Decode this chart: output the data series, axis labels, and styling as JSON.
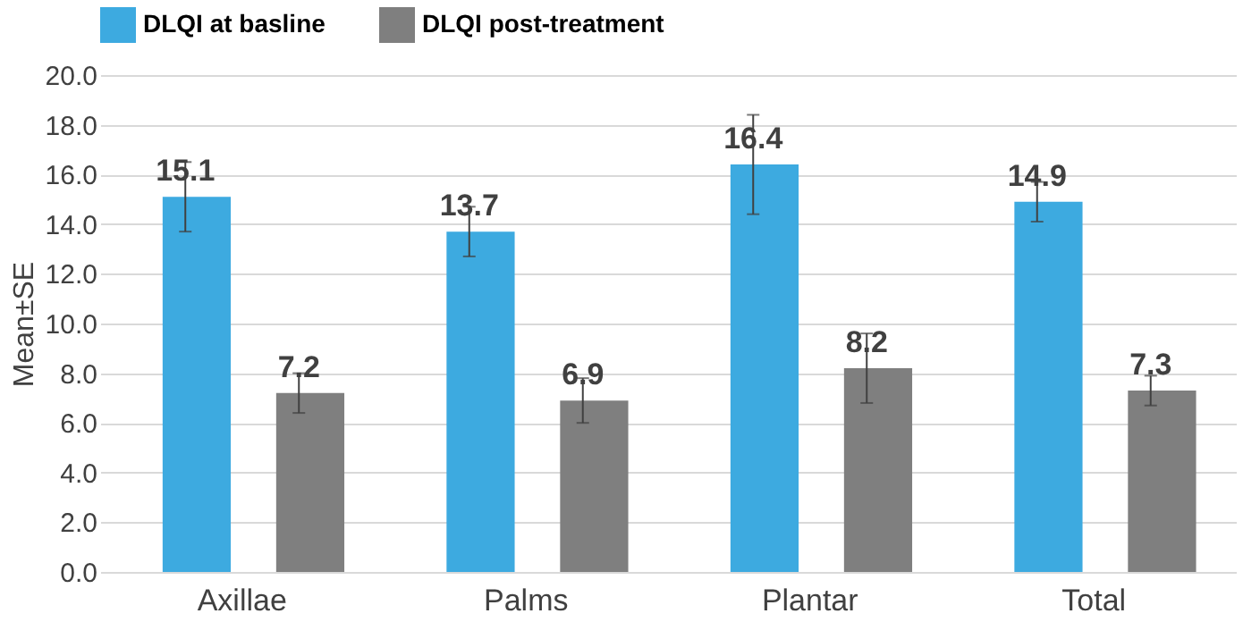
{
  "chart_data": {
    "type": "bar",
    "ylabel": "Mean±SE",
    "categories": [
      "Axillae",
      "Palms",
      "Plantar",
      "Total"
    ],
    "series": [
      {
        "name": "DLQI at basline",
        "color": "#3daae0",
        "values": [
          15.1,
          13.7,
          16.4,
          14.9
        ],
        "errors": [
          1.4,
          1.0,
          2.0,
          0.8
        ]
      },
      {
        "name": "DLQI post-treatment",
        "color": "#7f7f7f",
        "values": [
          7.2,
          6.9,
          8.2,
          7.3
        ],
        "errors": [
          0.8,
          0.9,
          1.4,
          0.6
        ]
      }
    ],
    "ylim": [
      0,
      20
    ],
    "yticks": [
      {
        "value": 0,
        "label": "0.0"
      },
      {
        "value": 2,
        "label": "2.0"
      },
      {
        "value": 4,
        "label": "4.0"
      },
      {
        "value": 6,
        "label": "6.0"
      },
      {
        "value": 8,
        "label": "8.0"
      },
      {
        "value": 10,
        "label": "10.0"
      },
      {
        "value": 12,
        "label": "12.0"
      },
      {
        "value": 14,
        "label": "14.0"
      },
      {
        "value": 16,
        "label": "16.0"
      },
      {
        "value": 18,
        "label": "18.0"
      },
      {
        "value": 20,
        "label": "20.0"
      }
    ],
    "grid": true,
    "legend": "top",
    "data_labels": true
  }
}
